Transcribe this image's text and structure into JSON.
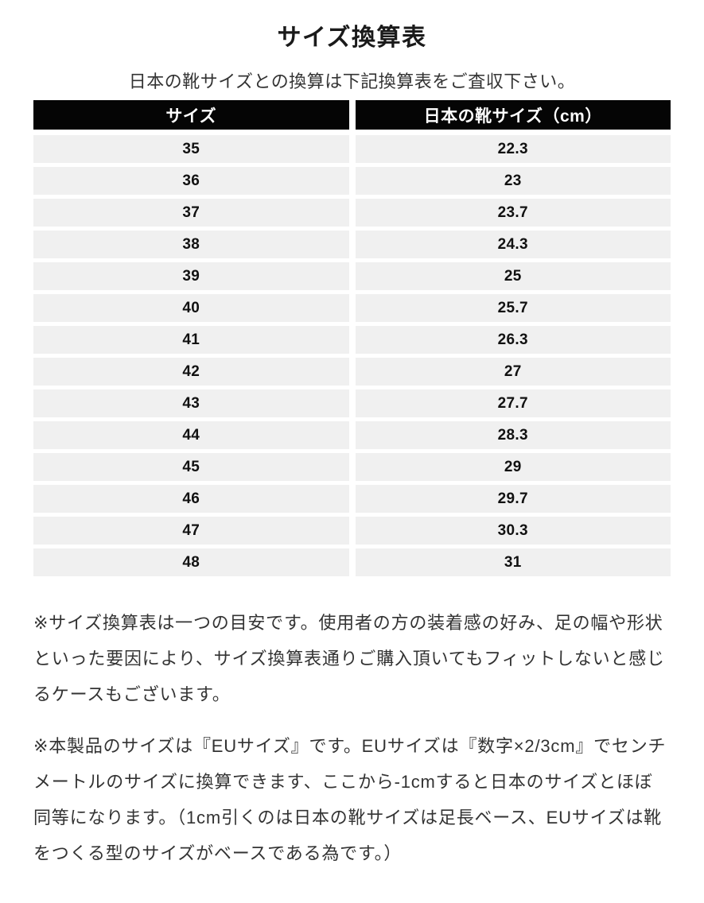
{
  "page": {
    "title": "サイズ換算表",
    "subtitle": "日本の靴サイズとの換算は下記換算表をご査収下さい。"
  },
  "table": {
    "columns": [
      "サイズ",
      "日本の靴サイズ（cm）"
    ],
    "rows": [
      [
        "35",
        "22.3"
      ],
      [
        "36",
        "23"
      ],
      [
        "37",
        "23.7"
      ],
      [
        "38",
        "24.3"
      ],
      [
        "39",
        "25"
      ],
      [
        "40",
        "25.7"
      ],
      [
        "41",
        "26.3"
      ],
      [
        "42",
        "27"
      ],
      [
        "43",
        "27.7"
      ],
      [
        "44",
        "28.3"
      ],
      [
        "45",
        "29"
      ],
      [
        "46",
        "29.7"
      ],
      [
        "47",
        "30.3"
      ],
      [
        "48",
        "31"
      ]
    ]
  },
  "notes": [
    "※サイズ換算表は一つの目安です。使用者の方の装着感の好み、足の幅や形状といった要因により、サイズ換算表通りご購入頂いてもフィットしないと感じるケースもございます。",
    "※本製品のサイズは『EUサイズ』です。EUサイズは『数字×2/3cm』でセンチメートルのサイズに換算できます、ここから-1cmすると日本のサイズとほぼ同等になります。（1cm引くのは日本の靴サイズは足長ベース、EUサイズは靴をつくる型のサイズがベースである為です。）"
  ],
  "colors": {
    "header_bg": "#050505",
    "header_text": "#ffffff",
    "row_bg": "#f0f0f0",
    "body_text": "#333333",
    "cell_text": "#111111"
  }
}
